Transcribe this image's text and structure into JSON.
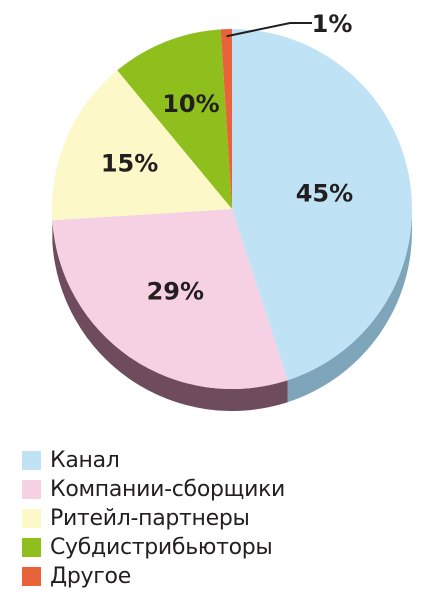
{
  "chart_data": {
    "type": "pie",
    "categories": [
      "Канал",
      "Компании-сборщики",
      "Ритейл-партнеры",
      "Субдистрибьюторы",
      "Другое"
    ],
    "values": [
      45,
      29,
      15,
      10,
      1
    ],
    "labels": [
      "45%",
      "29%",
      "15%",
      "10%",
      "1%"
    ],
    "colors": [
      "#bfe3f5",
      "#f6d1e3",
      "#fdf8c8",
      "#8fbf1c",
      "#e8623a"
    ],
    "side_colors": [
      "#7fa5bb",
      "#6e4c5e",
      "#e6dfae",
      "#5f8312",
      "#a84325"
    ],
    "title": "",
    "legend_position": "bottom-left",
    "style": "3d"
  }
}
